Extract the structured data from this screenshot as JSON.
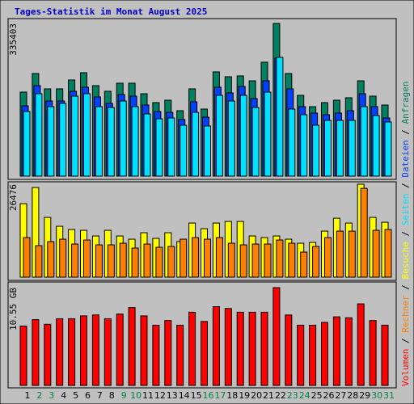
{
  "chart_data": [
    {
      "type": "bar",
      "title": "Tages-Statistik im Monat August 2025",
      "legend_separator": "/",
      "ylim": [
        0,
        335403
      ],
      "yticks": [
        335403
      ],
      "series": [
        {
          "name": "Anfragen",
          "color": "#008060",
          "values": [
            184600,
            225400,
            191700,
            191700,
            211200,
            227200,
            198800,
            186400,
            204100,
            204100,
            181000,
            161500,
            166800,
            143800,
            191700,
            147300,
            229000,
            218300,
            220100,
            209400,
            250300,
            335403,
            225400,
            177500,
            152600,
            161500,
            166800,
            172200,
            209400,
            175700,
            156200
          ]
        },
        {
          "name": "Dateien",
          "color": "#0040ff",
          "values": [
            154400,
            198800,
            165100,
            165100,
            186400,
            195300,
            174000,
            159800,
            179300,
            175700,
            156200,
            142000,
            140200,
            124300,
            163300,
            129600,
            195300,
            182800,
            197000,
            170400,
            209500,
            259200,
            191700,
            152700,
            138500,
            134900,
            138500,
            143800,
            181100,
            152700,
            127800
          ]
        },
        {
          "name": "Seiten",
          "color": "#00e0ff",
          "values": [
            142000,
            181100,
            152700,
            159800,
            175700,
            181100,
            152700,
            150900,
            165100,
            152700,
            136700,
            126000,
            127800,
            111800,
            140200,
            110100,
            177500,
            165100,
            177500,
            150900,
            184600,
            260900,
            147300,
            134900,
            111800,
            122500,
            122500,
            122500,
            152700,
            133100,
            118900
          ]
        }
      ]
    },
    {
      "type": "bar",
      "ylim": [
        0,
        26476
      ],
      "yticks": [
        26476
      ],
      "series": [
        {
          "name": "Besuche",
          "color": "#ffff00",
          "values": [
            20930,
            25530,
            17020,
            14490,
            13570,
            13340,
            11730,
            13340,
            11730,
            10810,
            12650,
            11040,
            12650,
            10120,
            15410,
            13800,
            15410,
            15870,
            15870,
            11730,
            11270,
            11730,
            10810,
            9660,
            9890,
            13110,
            16790,
            15410,
            26476,
            17020,
            15640
          ]
        },
        {
          "name": "Rechner",
          "color": "#ff8000",
          "values": [
            11270,
            8970,
            10120,
            10810,
            9430,
            10580,
            9200,
            9200,
            9660,
            8280,
            9430,
            8510,
            8740,
            10810,
            11270,
            10810,
            11270,
            9660,
            9200,
            9430,
            9430,
            10580,
            9660,
            7130,
            8740,
            11270,
            13110,
            13110,
            25300,
            13340,
            13570
          ]
        }
      ]
    },
    {
      "type": "bar",
      "ylim": [
        0,
        10.55
      ],
      "yticks": [
        {
          "value": 10.55,
          "label": "10.55 GB"
        }
      ],
      "categories": [
        "1",
        "2",
        "3",
        "4",
        "5",
        "6",
        "7",
        "8",
        "9",
        "10",
        "11",
        "12",
        "13",
        "14",
        "15",
        "16",
        "17",
        "18",
        "19",
        "20",
        "21",
        "22",
        "23",
        "24",
        "25",
        "26",
        "27",
        "28",
        "29",
        "30",
        "31"
      ],
      "category_colors": [
        "#000000",
        "#008040",
        "#008040",
        "#000000",
        "#000000",
        "#000000",
        "#000000",
        "#000000",
        "#008040",
        "#008040",
        "#000000",
        "#000000",
        "#000000",
        "#000000",
        "#000000",
        "#008040",
        "#008040",
        "#000000",
        "#000000",
        "#000000",
        "#000000",
        "#000000",
        "#008040",
        "#008040",
        "#000000",
        "#000000",
        "#000000",
        "#000000",
        "#000000",
        "#008040",
        "#008040"
      ],
      "series": [
        {
          "name": "Volumen",
          "color": "#ff0000",
          "values": [
            6.4,
            7.1,
            6.6,
            7.2,
            7.2,
            7.5,
            7.6,
            7.2,
            7.7,
            8.4,
            7.5,
            6.5,
            7.0,
            6.5,
            7.9,
            6.9,
            8.5,
            8.3,
            7.9,
            7.9,
            7.9,
            10.55,
            7.6,
            6.5,
            6.5,
            6.8,
            7.4,
            7.3,
            8.8,
            7.0,
            6.5
          ]
        }
      ]
    }
  ]
}
